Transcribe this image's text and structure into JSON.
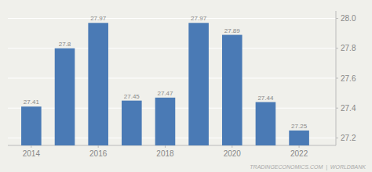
{
  "chart_data": {
    "type": "bar",
    "x": [
      2014,
      2015,
      2016,
      2017,
      2018,
      2019,
      2020,
      2021,
      2022
    ],
    "values": [
      27.41,
      27.8,
      27.97,
      27.45,
      27.47,
      27.97,
      27.89,
      27.44,
      27.25
    ],
    "color": "#4a7ab5",
    "xlim": [
      2013.3,
      2023.1
    ],
    "xticks": [
      2014,
      2016,
      2018,
      2020,
      2022
    ],
    "ylim": [
      27.15,
      28.05
    ],
    "yticks": [
      27.2,
      27.4,
      27.6,
      27.8,
      {
        "value": 28.0,
        "label": "28.0"
      }
    ],
    "grid": true,
    "data_labels": true,
    "annotation": "TRADINGECONOMICS.COM  |  WORLDBANK"
  }
}
